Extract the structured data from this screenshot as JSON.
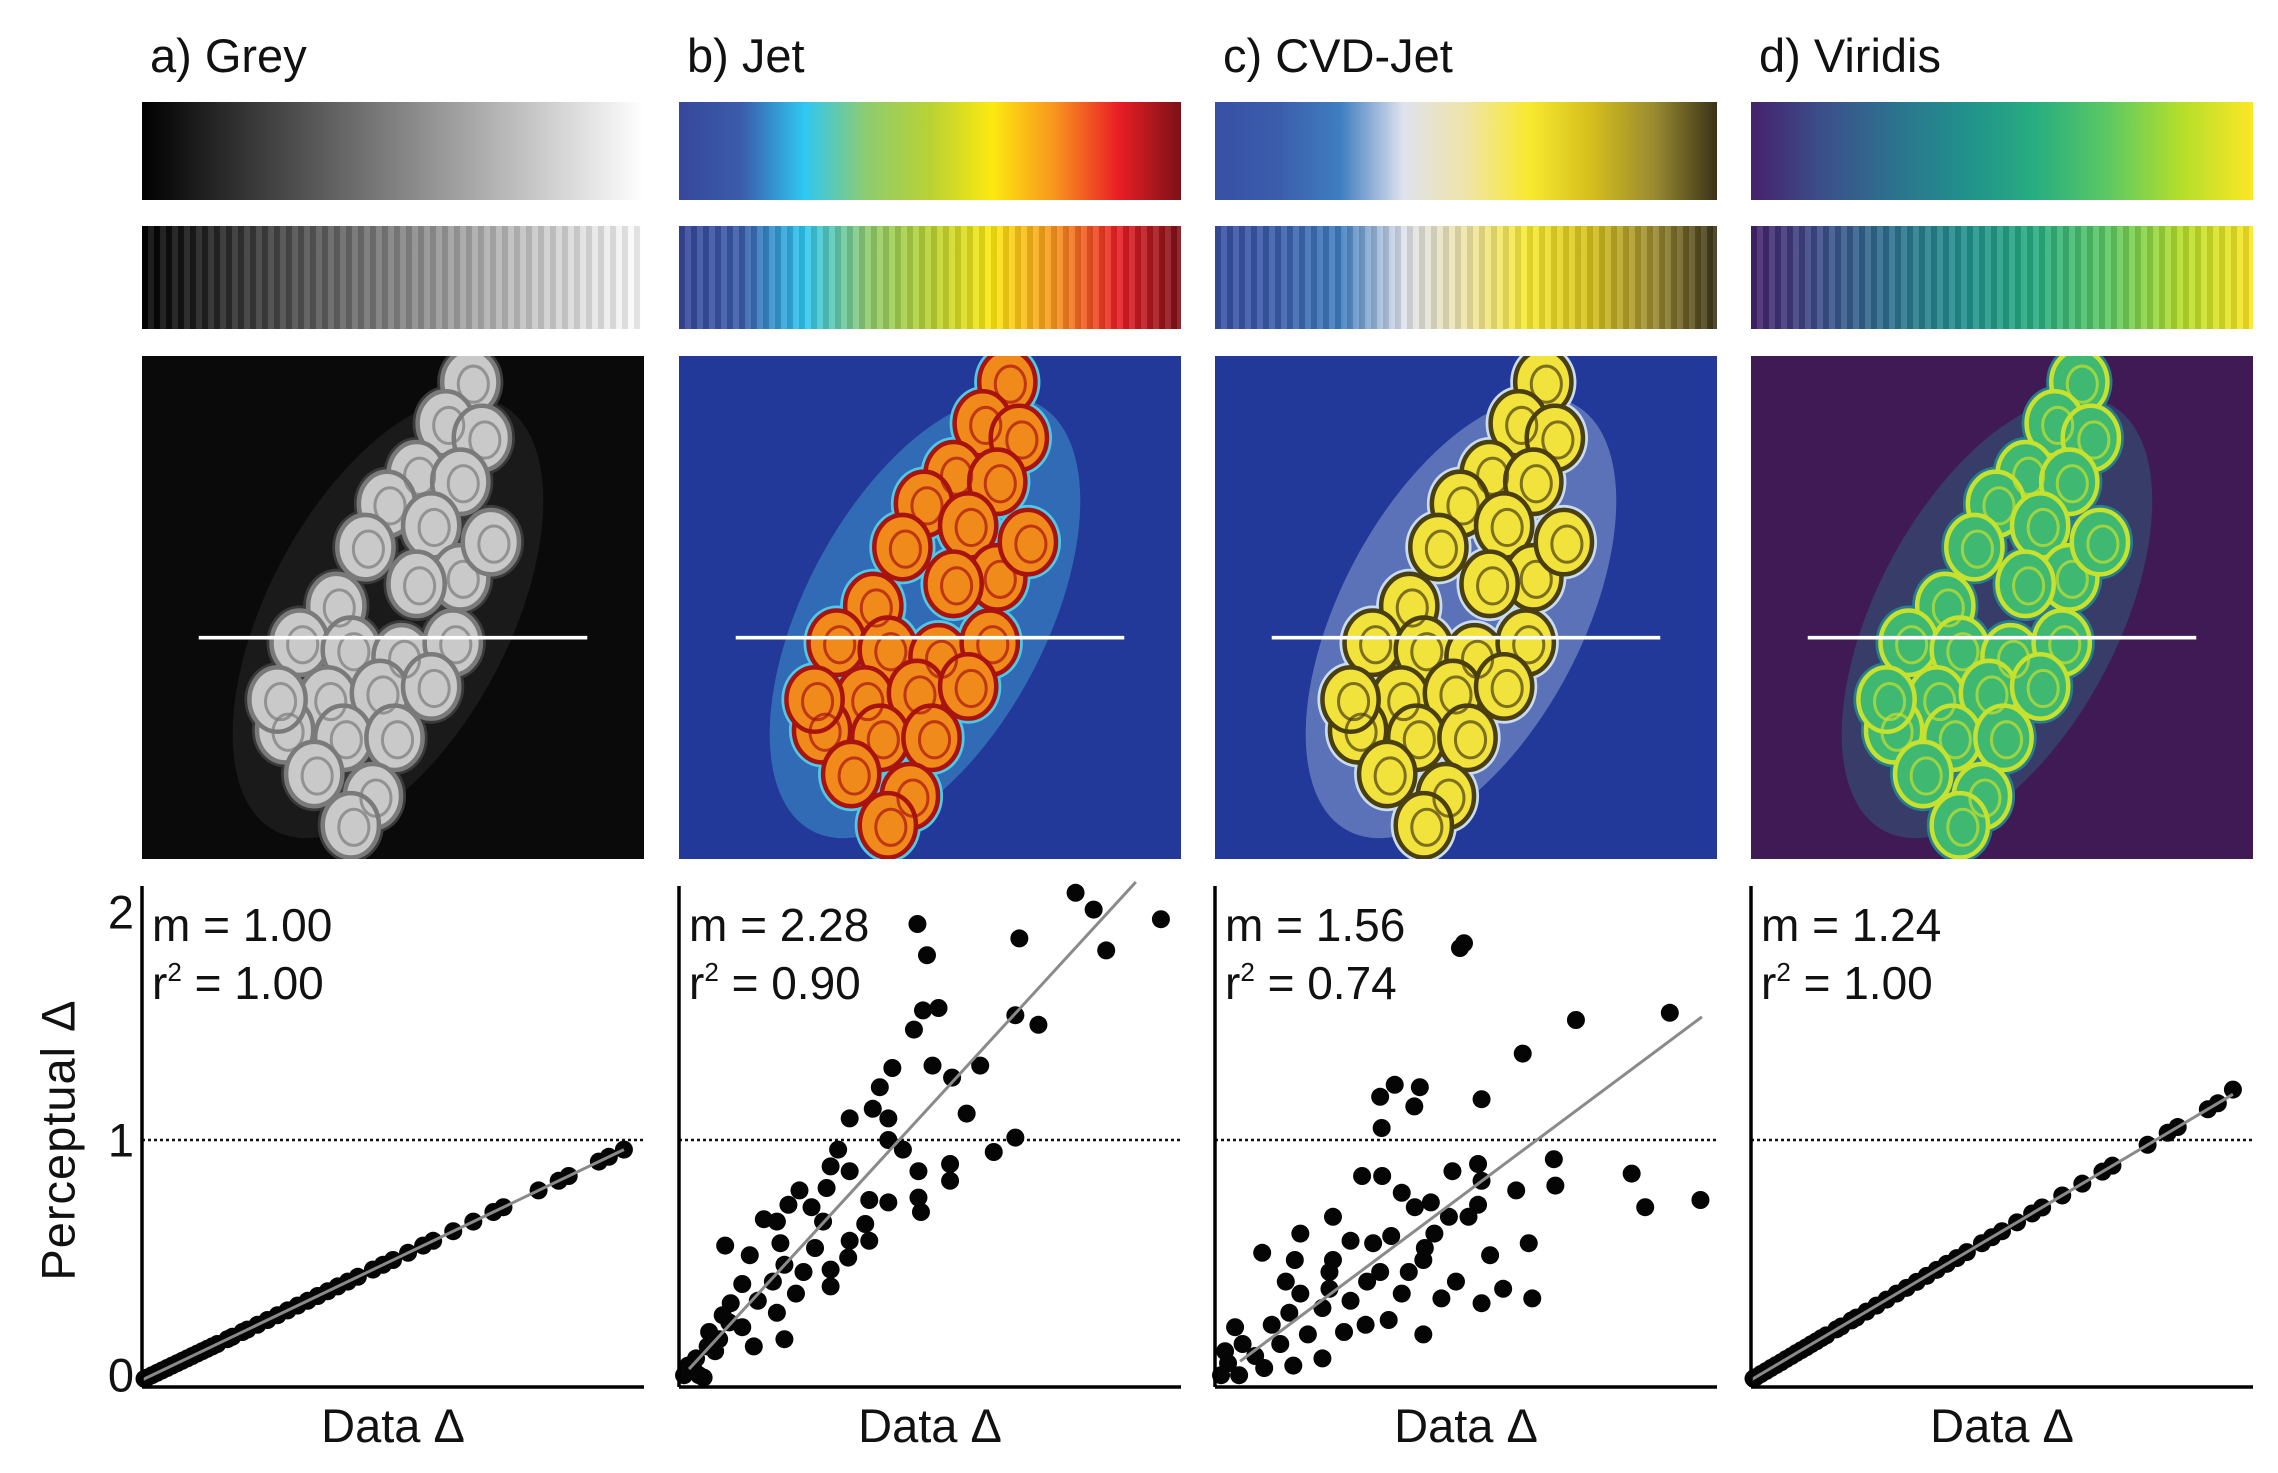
{
  "y_axis": {
    "label": "Perceptual Δ",
    "ticks": [
      "0",
      "1",
      "2"
    ]
  },
  "panels": [
    {
      "title": "a) Grey",
      "m_text": "m = 1.00",
      "r2_letter": "r",
      "r2_sup": "2",
      "r2_text": " = 1.00",
      "xlabel": "Data Δ",
      "colormap": [
        "#000000",
        "#ffffff"
      ],
      "image_colors": {
        "background": "#0a0a0a",
        "halo": "#3a3a3a",
        "cell": "#c9c9c9",
        "cell_edge": "#7a7a7a",
        "line": "#ffffff"
      }
    },
    {
      "title": "b) Jet",
      "m_text": "m = 2.28",
      "r2_letter": "r",
      "r2_sup": "2",
      "r2_text": " = 0.90",
      "xlabel": "Data Δ",
      "colormap": [
        "#37479b",
        "#3b5cab",
        "#2ec8f2",
        "#8fcc6e",
        "#b8d234",
        "#fde910",
        "#f7941d",
        "#e91e25",
        "#7b1117"
      ],
      "image_colors": {
        "background": "#22399a",
        "halo": "#4fc9e8",
        "cell": "#f08a1a",
        "cell_edge": "#a8120f",
        "line": "#ffffff"
      }
    },
    {
      "title": "c) CVD-Jet",
      "m_text": "m = 1.56",
      "r2_letter": "r",
      "r2_sup": "2",
      "r2_text": " = 0.74",
      "xlabel": "Data Δ",
      "colormap": [
        "#3750a3",
        "#3b5dab",
        "#3f7ec0",
        "#dfe2ee",
        "#efe4a8",
        "#f8ea30",
        "#d4bf1c",
        "#9a8a30",
        "#3a3318"
      ],
      "image_colors": {
        "background": "#22399a",
        "halo": "#c9dcf0",
        "cell": "#f1e23c",
        "cell_edge": "#4a3f10",
        "line": "#ffffff"
      }
    },
    {
      "title": "d) Viridis",
      "m_text": "m = 1.24",
      "r2_letter": "r",
      "r2_sup": "2",
      "r2_text": " = 1.00",
      "xlabel": "Data Δ",
      "colormap": [
        "#45216b",
        "#3b4f8b",
        "#2c728e",
        "#21918c",
        "#28ae80",
        "#5ec962",
        "#b5de2b",
        "#fde725"
      ],
      "image_colors": {
        "background": "#3f1a55",
        "halo": "#277f8e",
        "cell": "#3fb872",
        "cell_edge": "#c6e12e",
        "line": "#ffffff"
      }
    }
  ],
  "chart_data": [
    {
      "type": "scatter",
      "panel": "a) Grey",
      "xlabel": "Data Δ",
      "ylabel": "Perceptual Δ",
      "xlim": [
        0,
        1
      ],
      "ylim": [
        0,
        2.06
      ],
      "yticks": [
        0,
        1,
        2
      ],
      "reference_line_y": 1,
      "reference_style": "dotted",
      "fit": {
        "slope": 1.0,
        "r2": 1.0,
        "x_range": [
          0,
          0.96
        ]
      },
      "points": [
        [
          0.005,
          0.005
        ],
        [
          0.01,
          0.01
        ],
        [
          0.02,
          0.02
        ],
        [
          0.03,
          0.03
        ],
        [
          0.04,
          0.04
        ],
        [
          0.05,
          0.05
        ],
        [
          0.06,
          0.06
        ],
        [
          0.07,
          0.07
        ],
        [
          0.08,
          0.08
        ],
        [
          0.09,
          0.09
        ],
        [
          0.1,
          0.1
        ],
        [
          0.11,
          0.11
        ],
        [
          0.12,
          0.12
        ],
        [
          0.13,
          0.13
        ],
        [
          0.14,
          0.14
        ],
        [
          0.15,
          0.15
        ],
        [
          0.17,
          0.17
        ],
        [
          0.18,
          0.18
        ],
        [
          0.2,
          0.2
        ],
        [
          0.21,
          0.21
        ],
        [
          0.23,
          0.23
        ],
        [
          0.25,
          0.25
        ],
        [
          0.27,
          0.27
        ],
        [
          0.29,
          0.29
        ],
        [
          0.31,
          0.31
        ],
        [
          0.33,
          0.33
        ],
        [
          0.35,
          0.35
        ],
        [
          0.37,
          0.37
        ],
        [
          0.39,
          0.39
        ],
        [
          0.41,
          0.41
        ],
        [
          0.43,
          0.43
        ],
        [
          0.46,
          0.46
        ],
        [
          0.48,
          0.48
        ],
        [
          0.5,
          0.5
        ],
        [
          0.53,
          0.53
        ],
        [
          0.56,
          0.56
        ],
        [
          0.58,
          0.58
        ],
        [
          0.62,
          0.62
        ],
        [
          0.66,
          0.66
        ],
        [
          0.7,
          0.7
        ],
        [
          0.72,
          0.72
        ],
        [
          0.79,
          0.79
        ],
        [
          0.83,
          0.83
        ],
        [
          0.85,
          0.85
        ],
        [
          0.91,
          0.91
        ],
        [
          0.93,
          0.93
        ],
        [
          0.96,
          0.96
        ]
      ]
    },
    {
      "type": "scatter",
      "panel": "b) Jet",
      "xlabel": "Data Δ",
      "ylabel": "Perceptual Δ",
      "xlim": [
        0,
        1
      ],
      "ylim": [
        0,
        2.06
      ],
      "yticks": [
        0,
        1,
        2
      ],
      "reference_line_y": 1,
      "reference_style": "dotted",
      "fit": {
        "slope": 2.28,
        "r2": 0.9,
        "x_range": [
          0.02,
          0.91
        ]
      },
      "points": [
        [
          0.475,
          1.9
        ],
        [
          0.494,
          1.77
        ],
        [
          0.678,
          1.84
        ],
        [
          0.79,
          2.03
        ],
        [
          0.826,
          1.96
        ],
        [
          0.851,
          1.79
        ],
        [
          0.96,
          1.92
        ],
        [
          0.486,
          1.54
        ],
        [
          0.517,
          1.55
        ],
        [
          0.468,
          1.46
        ],
        [
          0.67,
          1.52
        ],
        [
          0.716,
          1.48
        ],
        [
          0.425,
          1.3
        ],
        [
          0.505,
          1.31
        ],
        [
          0.544,
          1.26
        ],
        [
          0.6,
          1.31
        ],
        [
          0.4,
          1.22
        ],
        [
          0.386,
          1.13
        ],
        [
          0.34,
          1.09
        ],
        [
          0.417,
          1.09
        ],
        [
          0.573,
          1.11
        ],
        [
          0.317,
          0.96
        ],
        [
          0.417,
          1.0
        ],
        [
          0.446,
          0.96
        ],
        [
          0.67,
          1.01
        ],
        [
          0.627,
          0.95
        ],
        [
          0.54,
          0.9
        ],
        [
          0.477,
          0.87
        ],
        [
          0.302,
          0.89
        ],
        [
          0.34,
          0.87
        ],
        [
          0.54,
          0.83
        ],
        [
          0.294,
          0.8
        ],
        [
          0.24,
          0.79
        ],
        [
          0.379,
          0.75
        ],
        [
          0.417,
          0.74
        ],
        [
          0.477,
          0.76
        ],
        [
          0.482,
          0.7
        ],
        [
          0.264,
          0.72
        ],
        [
          0.218,
          0.73
        ],
        [
          0.287,
          0.66
        ],
        [
          0.195,
          0.66
        ],
        [
          0.169,
          0.67
        ],
        [
          0.371,
          0.65
        ],
        [
          0.34,
          0.58
        ],
        [
          0.379,
          0.58
        ],
        [
          0.271,
          0.55
        ],
        [
          0.202,
          0.57
        ],
        [
          0.092,
          0.56
        ],
        [
          0.141,
          0.52
        ],
        [
          0.337,
          0.51
        ],
        [
          0.302,
          0.46
        ],
        [
          0.248,
          0.45
        ],
        [
          0.21,
          0.48
        ],
        [
          0.187,
          0.41
        ],
        [
          0.126,
          0.4
        ],
        [
          0.302,
          0.39
        ],
        [
          0.233,
          0.36
        ],
        [
          0.103,
          0.32
        ],
        [
          0.157,
          0.33
        ],
        [
          0.195,
          0.28
        ],
        [
          0.21,
          0.17
        ],
        [
          0.126,
          0.22
        ],
        [
          0.087,
          0.27
        ],
        [
          0.08,
          0.17
        ],
        [
          0.149,
          0.14
        ],
        [
          0.057,
          0.14
        ],
        [
          0.034,
          0.09
        ],
        [
          0.018,
          0.06
        ],
        [
          0.04,
          0.02
        ],
        [
          0.01,
          0.02
        ],
        [
          0.049,
          0.01
        ],
        [
          0.072,
          0.12
        ],
        [
          0.06,
          0.2
        ],
        [
          0.1,
          0.24
        ],
        [
          0.03,
          0.04
        ]
      ]
    },
    {
      "type": "scatter",
      "panel": "c) CVD-Jet",
      "xlabel": "Data Δ",
      "ylabel": "Perceptual Δ",
      "xlim": [
        0,
        1
      ],
      "ylim": [
        0,
        2.06
      ],
      "yticks": [
        0,
        1,
        2
      ],
      "reference_line_y": 1,
      "reference_style": "dotted",
      "fit": {
        "slope": 1.56,
        "r2": 0.74,
        "x_range": [
          0.05,
          0.97
        ]
      },
      "points": [
        [
          0.488,
          1.8
        ],
        [
          0.496,
          1.82
        ],
        [
          0.906,
          1.53
        ],
        [
          0.719,
          1.5
        ],
        [
          0.613,
          1.36
        ],
        [
          0.358,
          1.23
        ],
        [
          0.329,
          1.18
        ],
        [
          0.408,
          1.22
        ],
        [
          0.397,
          1.14
        ],
        [
          0.531,
          1.17
        ],
        [
          0.332,
          1.05
        ],
        [
          0.675,
          0.92
        ],
        [
          0.678,
          0.81
        ],
        [
          0.83,
          0.86
        ],
        [
          0.857,
          0.72
        ],
        [
          0.967,
          0.75
        ],
        [
          0.6,
          0.79
        ],
        [
          0.524,
          0.9
        ],
        [
          0.473,
          0.87
        ],
        [
          0.531,
          0.83
        ],
        [
          0.293,
          0.85
        ],
        [
          0.333,
          0.85
        ],
        [
          0.372,
          0.78
        ],
        [
          0.43,
          0.74
        ],
        [
          0.398,
          0.72
        ],
        [
          0.524,
          0.73
        ],
        [
          0.505,
          0.68
        ],
        [
          0.466,
          0.68
        ],
        [
          0.235,
          0.68
        ],
        [
          0.437,
          0.61
        ],
        [
          0.351,
          0.6
        ],
        [
          0.17,
          0.61
        ],
        [
          0.27,
          0.58
        ],
        [
          0.315,
          0.57
        ],
        [
          0.625,
          0.57
        ],
        [
          0.418,
          0.55
        ],
        [
          0.094,
          0.53
        ],
        [
          0.159,
          0.5
        ],
        [
          0.235,
          0.5
        ],
        [
          0.548,
          0.52
        ],
        [
          0.415,
          0.5
        ],
        [
          0.228,
          0.45
        ],
        [
          0.329,
          0.45
        ],
        [
          0.386,
          0.45
        ],
        [
          0.141,
          0.41
        ],
        [
          0.303,
          0.41
        ],
        [
          0.48,
          0.41
        ],
        [
          0.228,
          0.38
        ],
        [
          0.17,
          0.36
        ],
        [
          0.372,
          0.36
        ],
        [
          0.574,
          0.38
        ],
        [
          0.632,
          0.34
        ],
        [
          0.531,
          0.32
        ],
        [
          0.451,
          0.34
        ],
        [
          0.27,
          0.33
        ],
        [
          0.214,
          0.3
        ],
        [
          0.148,
          0.28
        ],
        [
          0.346,
          0.25
        ],
        [
          0.3,
          0.23
        ],
        [
          0.415,
          0.19
        ],
        [
          0.04,
          0.22
        ],
        [
          0.113,
          0.23
        ],
        [
          0.214,
          0.09
        ],
        [
          0.156,
          0.06
        ],
        [
          0.098,
          0.05
        ],
        [
          0.055,
          0.15
        ],
        [
          0.026,
          0.07
        ],
        [
          0.012,
          0.02
        ],
        [
          0.048,
          0.02
        ],
        [
          0.185,
          0.19
        ],
        [
          0.257,
          0.2
        ],
        [
          0.08,
          0.1
        ],
        [
          0.13,
          0.15
        ],
        [
          0.02,
          0.12
        ]
      ]
    },
    {
      "type": "scatter",
      "panel": "d) Viridis",
      "xlabel": "Data Δ",
      "ylabel": "Perceptual Δ",
      "xlim": [
        0,
        1
      ],
      "ylim": [
        0,
        2.06
      ],
      "yticks": [
        0,
        1,
        2
      ],
      "reference_line_y": 1,
      "reference_style": "dotted",
      "fit": {
        "slope": 1.24,
        "r2": 1.0,
        "x_range": [
          0,
          0.96
        ]
      },
      "points": [
        [
          0.005,
          0.006
        ],
        [
          0.01,
          0.012
        ],
        [
          0.02,
          0.025
        ],
        [
          0.03,
          0.037
        ],
        [
          0.04,
          0.05
        ],
        [
          0.05,
          0.062
        ],
        [
          0.06,
          0.074
        ],
        [
          0.07,
          0.087
        ],
        [
          0.08,
          0.099
        ],
        [
          0.09,
          0.112
        ],
        [
          0.1,
          0.124
        ],
        [
          0.11,
          0.136
        ],
        [
          0.12,
          0.149
        ],
        [
          0.13,
          0.161
        ],
        [
          0.14,
          0.174
        ],
        [
          0.15,
          0.186
        ],
        [
          0.17,
          0.211
        ],
        [
          0.18,
          0.223
        ],
        [
          0.2,
          0.248
        ],
        [
          0.21,
          0.26
        ],
        [
          0.23,
          0.285
        ],
        [
          0.25,
          0.31
        ],
        [
          0.27,
          0.335
        ],
        [
          0.29,
          0.36
        ],
        [
          0.31,
          0.384
        ],
        [
          0.33,
          0.409
        ],
        [
          0.35,
          0.434
        ],
        [
          0.37,
          0.459
        ],
        [
          0.39,
          0.484
        ],
        [
          0.41,
          0.508
        ],
        [
          0.43,
          0.533
        ],
        [
          0.46,
          0.57
        ],
        [
          0.48,
          0.595
        ],
        [
          0.5,
          0.62
        ],
        [
          0.53,
          0.657
        ],
        [
          0.56,
          0.694
        ],
        [
          0.58,
          0.719
        ],
        [
          0.62,
          0.769
        ],
        [
          0.66,
          0.818
        ],
        [
          0.7,
          0.868
        ],
        [
          0.72,
          0.893
        ],
        [
          0.79,
          0.98
        ],
        [
          0.83,
          1.03
        ],
        [
          0.85,
          1.054
        ],
        [
          0.91,
          1.128
        ],
        [
          0.93,
          1.153
        ],
        [
          0.96,
          1.21
        ]
      ]
    }
  ]
}
